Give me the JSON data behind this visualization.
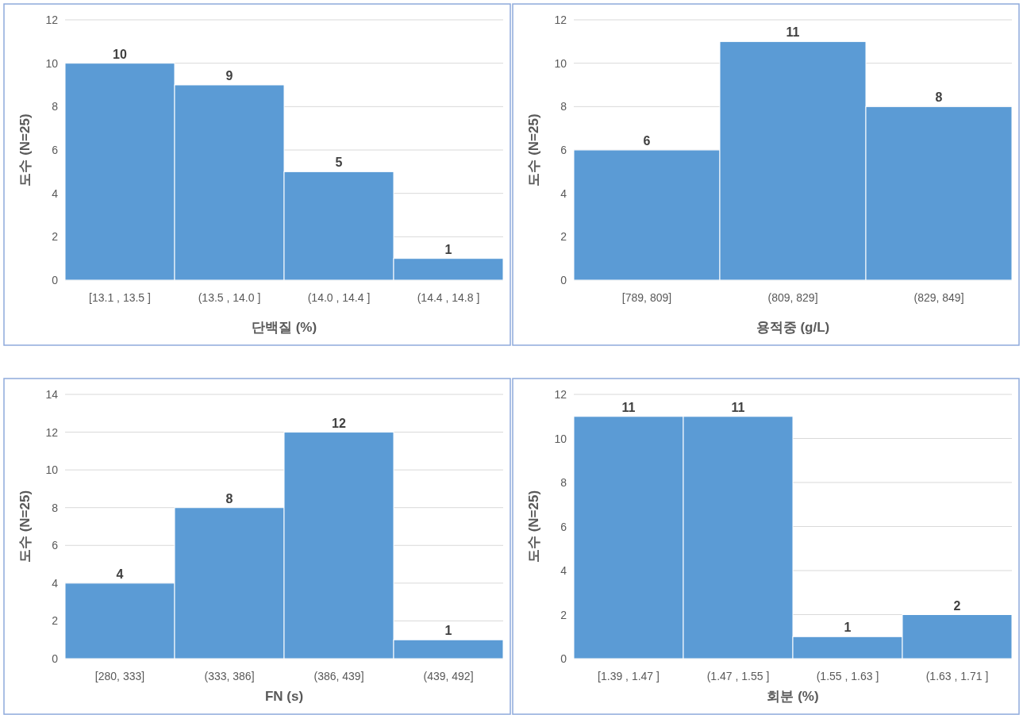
{
  "chart_data": [
    {
      "type": "bar",
      "categories": [
        "[13.1 , 13.5 ]",
        "(13.5 , 14.0 ]",
        "(14.0 , 14.4 ]",
        "(14.4 , 14.8 ]"
      ],
      "values": [
        10,
        9,
        5,
        1
      ],
      "color": "#5b9bd5",
      "ylim": [
        0,
        12
      ],
      "yticks": [
        0,
        2,
        4,
        6,
        8,
        10,
        12
      ],
      "xlabel": "단백질 (%)",
      "ylabel": "도수 (N=25)",
      "data_labels": true,
      "grid": "y"
    },
    {
      "type": "bar",
      "categories": [
        "[789, 809]",
        "(809, 829]",
        "(829, 849]"
      ],
      "values": [
        6,
        11,
        8
      ],
      "color": "#5b9bd5",
      "ylim": [
        0,
        12
      ],
      "yticks": [
        0,
        2,
        4,
        6,
        8,
        10,
        12
      ],
      "xlabel": "용적중 (g/L)",
      "ylabel": "도수 (N=25)",
      "data_labels": true,
      "grid": "y"
    },
    {
      "type": "bar",
      "categories": [
        "[280, 333]",
        "(333, 386]",
        "(386, 439]",
        "(439, 492]"
      ],
      "values": [
        4,
        8,
        12,
        1
      ],
      "color": "#5b9bd5",
      "ylim": [
        0,
        14
      ],
      "yticks": [
        0,
        2,
        4,
        6,
        8,
        10,
        12,
        14
      ],
      "xlabel": "FN (s)",
      "ylabel": "도수 (N=25)",
      "data_labels": true,
      "grid": "y"
    },
    {
      "type": "bar",
      "categories": [
        "[1.39 , 1.47 ]",
        "(1.47 , 1.55 ]",
        "(1.55 , 1.63 ]",
        "(1.63 , 1.71 ]"
      ],
      "values": [
        11,
        11,
        1,
        2
      ],
      "color": "#5b9bd5",
      "ylim": [
        0,
        12
      ],
      "yticks": [
        0,
        2,
        4,
        6,
        8,
        10,
        12
      ],
      "xlabel": "회분 (%)",
      "ylabel": "도수 (N=25)",
      "data_labels": true,
      "grid": "y"
    }
  ]
}
